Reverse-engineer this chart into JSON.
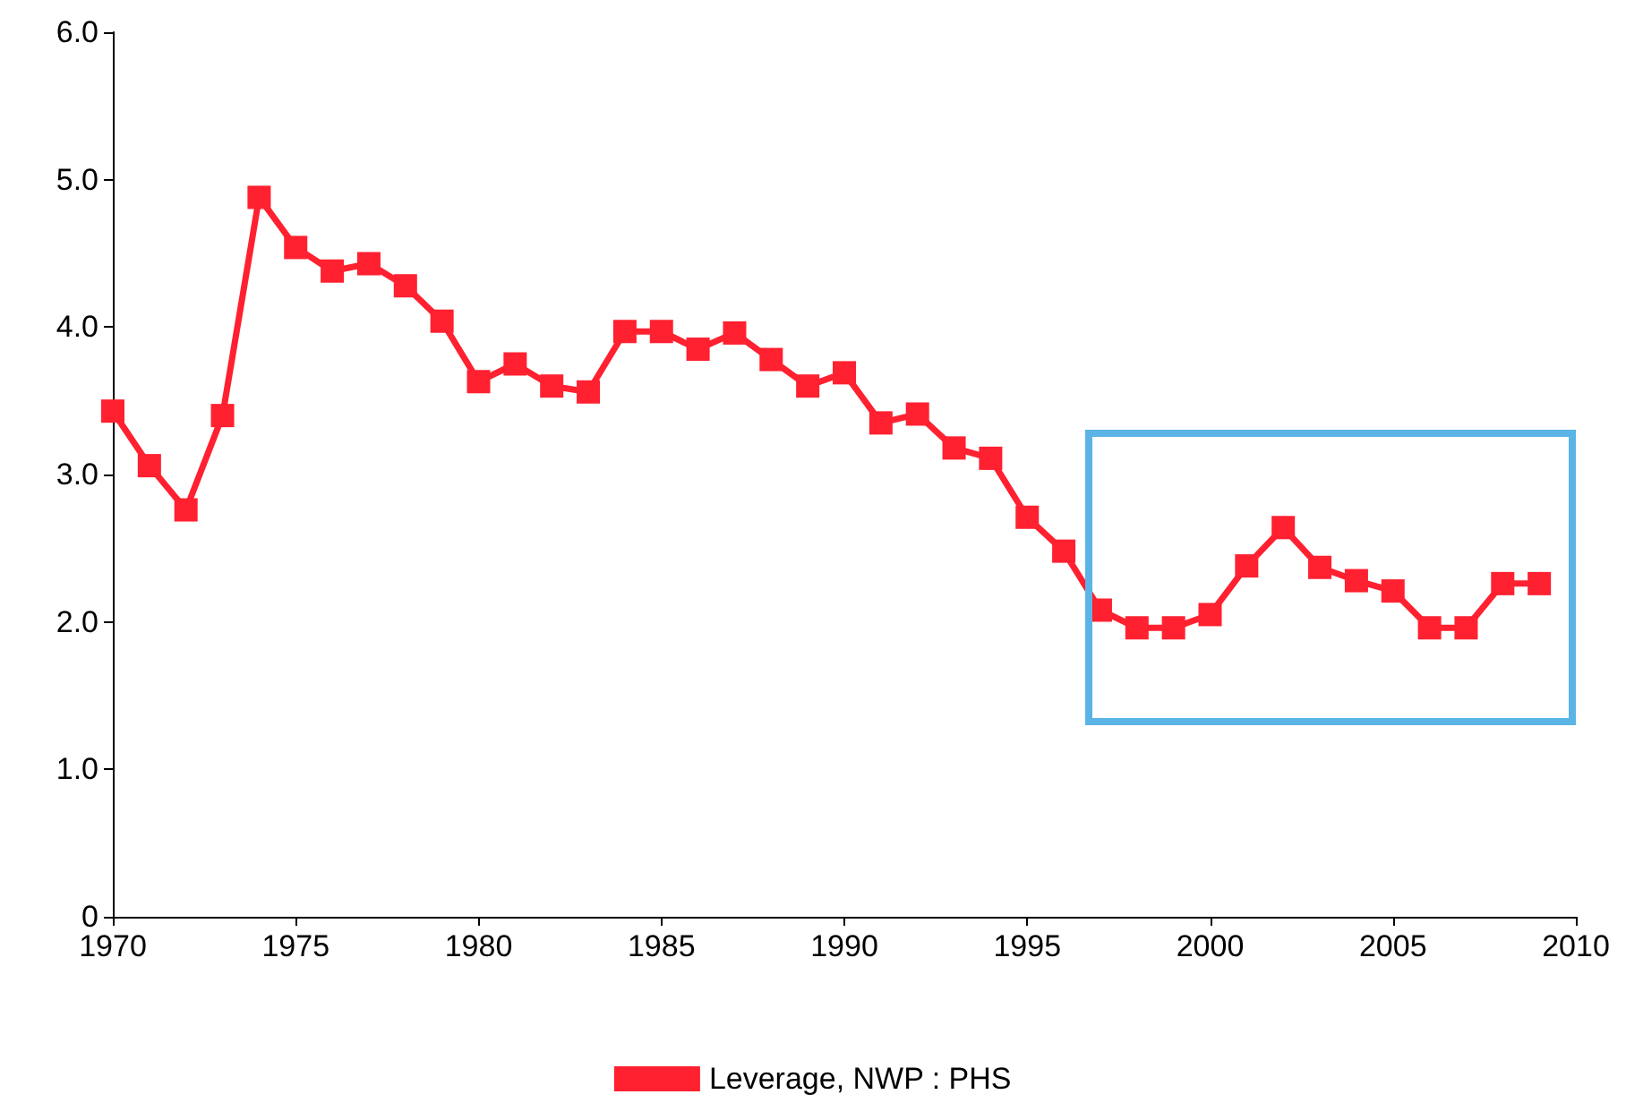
{
  "chart_data": {
    "type": "line",
    "x": [
      1970,
      1971,
      1972,
      1973,
      1974,
      1975,
      1976,
      1977,
      1978,
      1979,
      1980,
      1981,
      1982,
      1983,
      1984,
      1985,
      1986,
      1987,
      1988,
      1989,
      1990,
      1991,
      1992,
      1993,
      1994,
      1995,
      1996,
      1997,
      1998,
      1999,
      2000,
      2001,
      2002,
      2003,
      2004,
      2005,
      2006,
      2007,
      2008,
      2009
    ],
    "series": [
      {
        "name": "Leverage, NWP : PHS",
        "color": "#ff2030",
        "values": [
          3.43,
          3.06,
          2.76,
          3.4,
          4.88,
          4.54,
          4.38,
          4.43,
          4.28,
          4.04,
          3.63,
          3.75,
          3.6,
          3.56,
          3.97,
          3.97,
          3.85,
          3.96,
          3.78,
          3.6,
          3.69,
          3.35,
          3.41,
          3.18,
          3.11,
          2.71,
          2.48,
          2.08,
          1.96,
          1.96,
          2.05,
          2.38,
          2.64,
          2.37,
          2.28,
          2.21,
          1.96,
          1.96,
          2.26,
          2.26
        ]
      }
    ],
    "xlim": [
      1970,
      2010
    ],
    "xticks": [
      1970,
      1975,
      1980,
      1985,
      1990,
      1995,
      2000,
      2005,
      2010
    ],
    "ylim": [
      0,
      6
    ],
    "yticks": [
      0,
      {
        "value": 1,
        "label": "1.0"
      },
      {
        "value": 2,
        "label": "2.0"
      },
      {
        "value": 3,
        "label": "3.0"
      },
      {
        "value": 4,
        "label": "4.0"
      },
      {
        "value": 5,
        "label": "5.0"
      },
      {
        "value": 6,
        "label": "6.0"
      }
    ],
    "marker": "square",
    "line_style": "solid",
    "legend": "bottom",
    "grid": false
  }
}
